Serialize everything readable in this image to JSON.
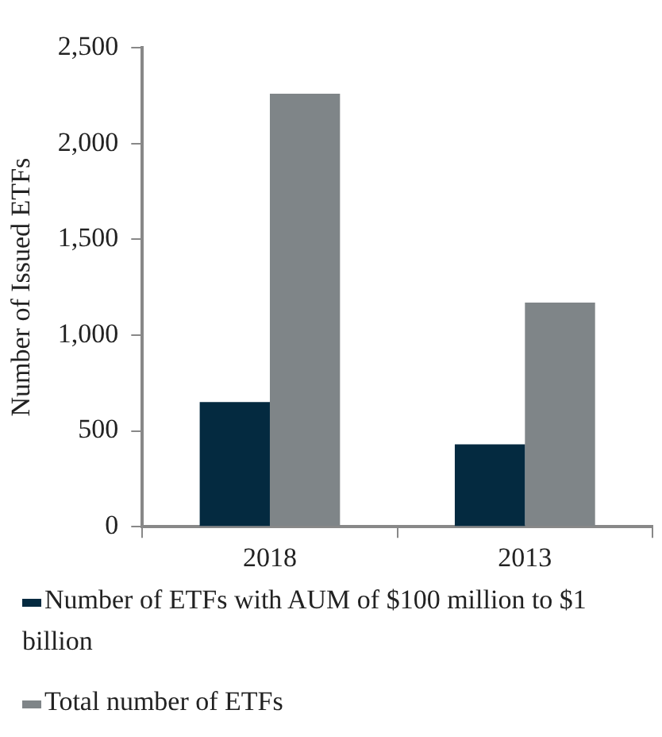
{
  "chart_data": {
    "type": "bar",
    "ylabel": "Number of Issued ETFs",
    "categories": [
      "2018",
      "2013"
    ],
    "series": [
      {
        "name": "Number of ETFs with AUM of $100 million to $1 billion",
        "color": "#042a40",
        "values": [
          650,
          430
        ]
      },
      {
        "name": "Total number of ETFs",
        "color": "#7f8588",
        "values": [
          2260,
          1170
        ]
      }
    ],
    "ylim": [
      0,
      2500
    ],
    "yticks": [
      {
        "value": 0,
        "label": "0"
      },
      {
        "value": 500,
        "label": "500"
      },
      {
        "value": 1000,
        "label": "1,000"
      },
      {
        "value": 1500,
        "label": "1,500"
      },
      {
        "value": 2000,
        "label": "2,000"
      },
      {
        "value": 2500,
        "label": "2,500"
      }
    ],
    "grid": false,
    "legend": "bottom"
  }
}
